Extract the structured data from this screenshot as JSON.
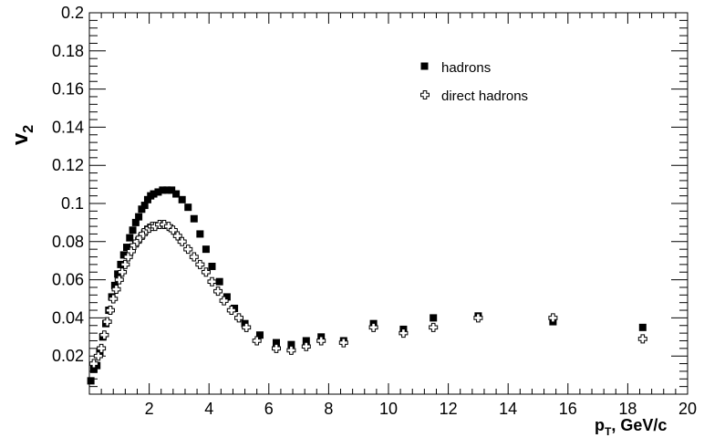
{
  "chart_data": {
    "type": "scatter",
    "title": "",
    "xlabel": {
      "main": "p",
      "sub": "T",
      "rest": ", GeV/c"
    },
    "ylabel": {
      "main": "v",
      "sub": "2"
    },
    "xlim": [
      0,
      20
    ],
    "ylim": [
      0,
      0.2
    ],
    "xticks": [
      2,
      4,
      6,
      8,
      10,
      12,
      14,
      16,
      18,
      20
    ],
    "yticks": [
      0.02,
      0.04,
      0.06,
      0.08,
      0.1,
      0.12,
      0.14,
      0.16,
      0.18,
      0.2
    ],
    "grid": false,
    "legend_position": "top-right",
    "series": [
      {
        "name": "hadrons",
        "marker": "filled-square",
        "color": "#000000",
        "points": [
          [
            0.05,
            0.007
          ],
          [
            0.15,
            0.013
          ],
          [
            0.25,
            0.015
          ],
          [
            0.35,
            0.022
          ],
          [
            0.45,
            0.03
          ],
          [
            0.55,
            0.037
          ],
          [
            0.65,
            0.044
          ],
          [
            0.75,
            0.051
          ],
          [
            0.85,
            0.057
          ],
          [
            0.95,
            0.063
          ],
          [
            1.05,
            0.068
          ],
          [
            1.15,
            0.073
          ],
          [
            1.25,
            0.077
          ],
          [
            1.35,
            0.082
          ],
          [
            1.45,
            0.086
          ],
          [
            1.55,
            0.09
          ],
          [
            1.65,
            0.093
          ],
          [
            1.75,
            0.097
          ],
          [
            1.85,
            0.099
          ],
          [
            1.95,
            0.102
          ],
          [
            2.05,
            0.104
          ],
          [
            2.15,
            0.105
          ],
          [
            2.3,
            0.106
          ],
          [
            2.45,
            0.107
          ],
          [
            2.6,
            0.107
          ],
          [
            2.75,
            0.107
          ],
          [
            2.9,
            0.105
          ],
          [
            3.1,
            0.102
          ],
          [
            3.3,
            0.098
          ],
          [
            3.5,
            0.092
          ],
          [
            3.7,
            0.084
          ],
          [
            3.9,
            0.076
          ],
          [
            4.1,
            0.067
          ],
          [
            4.35,
            0.059
          ],
          [
            4.6,
            0.051
          ],
          [
            4.85,
            0.045
          ],
          [
            5.2,
            0.037
          ],
          [
            5.7,
            0.031
          ],
          [
            6.25,
            0.027
          ],
          [
            6.75,
            0.026
          ],
          [
            7.25,
            0.028
          ],
          [
            7.75,
            0.03
          ],
          [
            8.5,
            0.028
          ],
          [
            9.5,
            0.037
          ],
          [
            10.5,
            0.034
          ],
          [
            11.5,
            0.04
          ],
          [
            13.0,
            0.041
          ],
          [
            15.5,
            0.038
          ],
          [
            18.5,
            0.035
          ]
        ]
      },
      {
        "name": "direct hadrons",
        "marker": "open-cross",
        "color": "#000000",
        "points": [
          [
            0.15,
            0.016
          ],
          [
            0.3,
            0.02
          ],
          [
            0.4,
            0.024
          ],
          [
            0.5,
            0.031
          ],
          [
            0.6,
            0.038
          ],
          [
            0.7,
            0.044
          ],
          [
            0.8,
            0.05
          ],
          [
            0.9,
            0.055
          ],
          [
            1.0,
            0.06
          ],
          [
            1.1,
            0.064
          ],
          [
            1.2,
            0.068
          ],
          [
            1.3,
            0.072
          ],
          [
            1.4,
            0.075
          ],
          [
            1.5,
            0.078
          ],
          [
            1.6,
            0.08
          ],
          [
            1.7,
            0.082
          ],
          [
            1.8,
            0.084
          ],
          [
            1.9,
            0.086
          ],
          [
            2.0,
            0.087
          ],
          [
            2.1,
            0.088
          ],
          [
            2.2,
            0.088
          ],
          [
            2.35,
            0.089
          ],
          [
            2.5,
            0.089
          ],
          [
            2.65,
            0.088
          ],
          [
            2.8,
            0.086
          ],
          [
            2.95,
            0.083
          ],
          [
            3.1,
            0.08
          ],
          [
            3.3,
            0.076
          ],
          [
            3.5,
            0.072
          ],
          [
            3.7,
            0.068
          ],
          [
            3.9,
            0.064
          ],
          [
            4.1,
            0.059
          ],
          [
            4.3,
            0.054
          ],
          [
            4.5,
            0.049
          ],
          [
            4.75,
            0.044
          ],
          [
            5.0,
            0.04
          ],
          [
            5.25,
            0.035
          ],
          [
            5.6,
            0.028
          ],
          [
            6.25,
            0.024
          ],
          [
            6.75,
            0.023
          ],
          [
            7.25,
            0.025
          ],
          [
            7.75,
            0.028
          ],
          [
            8.5,
            0.027
          ],
          [
            9.5,
            0.035
          ],
          [
            10.5,
            0.032
          ],
          [
            11.5,
            0.035
          ],
          [
            13.0,
            0.04
          ],
          [
            15.5,
            0.04
          ],
          [
            18.5,
            0.029
          ]
        ]
      }
    ]
  }
}
